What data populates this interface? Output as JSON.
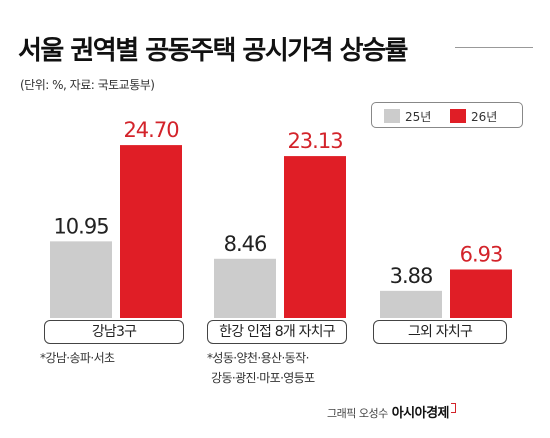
{
  "chart_data": {
    "type": "bar",
    "title": "서울 권역별 공동주택 공시가격 상승률",
    "subtitle": "(단위: %, 자료: 국토교통부)",
    "categories": [
      "강남3구",
      "한강 인접 8개 자치구",
      "그외 자치구"
    ],
    "series": [
      {
        "name": "25년",
        "values": [
          10.95,
          8.46,
          3.88
        ]
      },
      {
        "name": "26년",
        "values": [
          24.7,
          23.13,
          6.93
        ]
      }
    ],
    "value_labels": [
      [
        "10.95",
        "8.46",
        "3.88"
      ],
      [
        "24.70",
        "23.13",
        "6.93"
      ]
    ],
    "ylim": [
      0,
      30
    ],
    "grid": false,
    "legend_position": "top-right",
    "colors": {
      "25년": "#cccccc",
      "26년": "#e01e26",
      "label_26": "#d3232a"
    },
    "notes": [
      "*강남·송파·서초",
      "*성동·양천·용산·동작·",
      "강동·광진·마포·영등포"
    ]
  },
  "credit": {
    "text": "그래픽 오성수",
    "brand": "아시아경제"
  }
}
